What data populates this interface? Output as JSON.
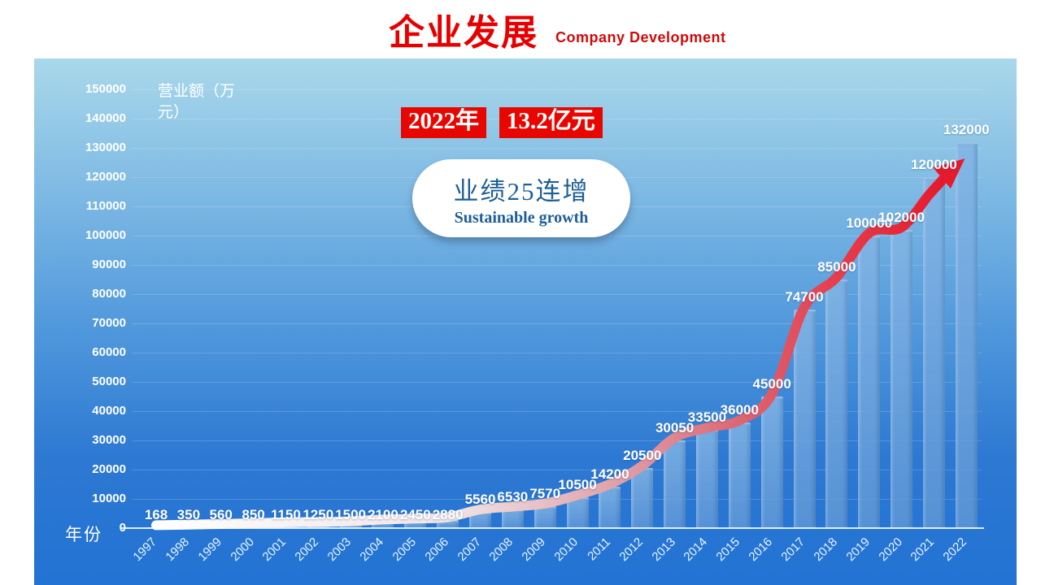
{
  "header": {
    "title_cn": "企业发展",
    "title_en": "Company Development"
  },
  "callout": {
    "year_badge": "2022年",
    "amount_badge": "13.2亿元",
    "slogan_cn": "业绩25连增",
    "slogan_en": "Sustainable growth"
  },
  "chart_data": {
    "type": "bar",
    "categories": [
      "1997",
      "1998",
      "1999",
      "2000",
      "2001",
      "2002",
      "2003",
      "2004",
      "2005",
      "2006",
      "2007",
      "2008",
      "2009",
      "2010",
      "2011",
      "2012",
      "2013",
      "2014",
      "2015",
      "2016",
      "2017",
      "2018",
      "2019",
      "2020",
      "2021",
      "2022"
    ],
    "values": [
      168,
      350,
      560,
      850,
      1150,
      1250,
      1500,
      2100,
      2450,
      2880,
      5560,
      6530,
      7570,
      10500,
      14200,
      20500,
      30050,
      33500,
      36000,
      45000,
      74700,
      85000,
      100000,
      102000,
      120000,
      132000
    ],
    "title": "企业发展 Company Development",
    "xlabel": "年份",
    "ylabel": "营业额（万元）",
    "ylim": [
      0,
      150000
    ],
    "ytick_step": 10000,
    "grid": true,
    "legend": false,
    "bar_color": "#6ca3db",
    "trend_arrow": {
      "description": "thick smoothed line over bar tops ending in arrowhead",
      "gradient": [
        "#ffffff",
        "#f0e3e4",
        "#e0a2ab",
        "#dd6673",
        "#e51a2c"
      ],
      "arrow_color": "#e51a2c"
    },
    "background_gradient": [
      "#a9d8ea",
      "#2273d4"
    ],
    "accent_red": "#e80600"
  }
}
